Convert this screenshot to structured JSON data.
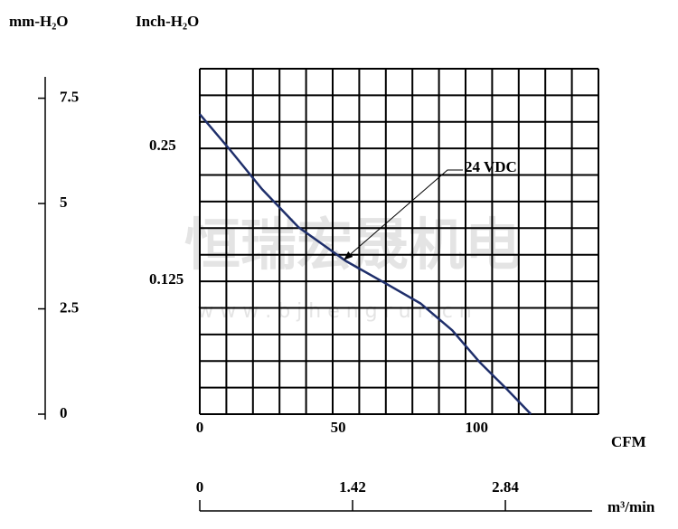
{
  "chart_data": {
    "type": "line",
    "y_label": "mm-H₂O",
    "y2_label": "Inch-H₂O",
    "x_label": "CFM",
    "x2_label": "m³/min",
    "watermark": [
      "恒瑞宏晟机电",
      "w w w . b j h e n g r u i . c n"
    ],
    "xlim": [
      0,
      144
    ],
    "xticks": [
      0,
      50,
      100
    ],
    "x2lim": [
      0,
      3.705
    ],
    "x2ticks": [
      0,
      1.42,
      2.84
    ],
    "ylim": [
      0,
      8.2
    ],
    "yticks": [
      0,
      2.5,
      5,
      7.5
    ],
    "y2lim": [
      0,
      0.3228
    ],
    "y2ticks": [
      0.125,
      0.25
    ],
    "grid": true,
    "series": [
      {
        "name": "24 VDC",
        "color": "#1f2f6b",
        "x": [
          0,
          11.1,
          22.5,
          35.6,
          52.9,
          68.3,
          79.7,
          91.2,
          101,
          110.8,
          119.6
        ],
        "values": [
          7.12,
          6.26,
          5.34,
          4.44,
          3.63,
          3.06,
          2.63,
          1.99,
          1.24,
          0.6,
          0
        ]
      }
    ]
  }
}
